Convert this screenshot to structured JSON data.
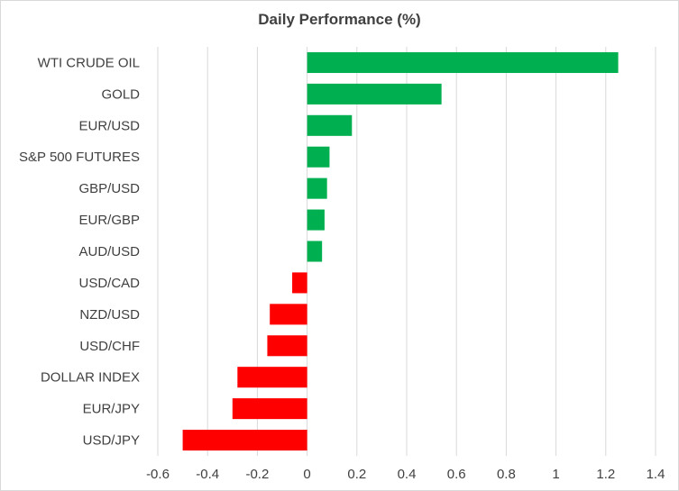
{
  "chart_data": {
    "type": "bar",
    "orientation": "horizontal",
    "title": "Daily Performance (%)",
    "xlabel": "",
    "ylabel": "",
    "xlim": [
      -0.6,
      1.4
    ],
    "x_ticks": [
      -0.6,
      -0.4,
      -0.2,
      0,
      0.2,
      0.4,
      0.6,
      0.8,
      1,
      1.2,
      1.4
    ],
    "x_tick_labels": [
      "-0.6",
      "-0.4",
      "-0.2",
      "0",
      "0.2",
      "0.4",
      "0.6",
      "0.8",
      "1",
      "1.2",
      "1.4"
    ],
    "grid": "vertical",
    "categories": [
      "WTI CRUDE OIL",
      "GOLD",
      "EUR/USD",
      "S&P 500 FUTURES",
      "GBP/USD",
      "EUR/GBP",
      "AUD/USD",
      "USD/CAD",
      "NZD/USD",
      "USD/CHF",
      "DOLLAR INDEX",
      "EUR/JPY",
      "USD/JPY"
    ],
    "values": [
      1.25,
      0.54,
      0.18,
      0.09,
      0.08,
      0.07,
      0.06,
      -0.06,
      -0.15,
      -0.16,
      -0.28,
      -0.3,
      -0.5
    ],
    "colors": {
      "positive": "#00b050",
      "negative": "#ff0000",
      "grid": "#d9d9d9",
      "text": "#404040"
    }
  }
}
